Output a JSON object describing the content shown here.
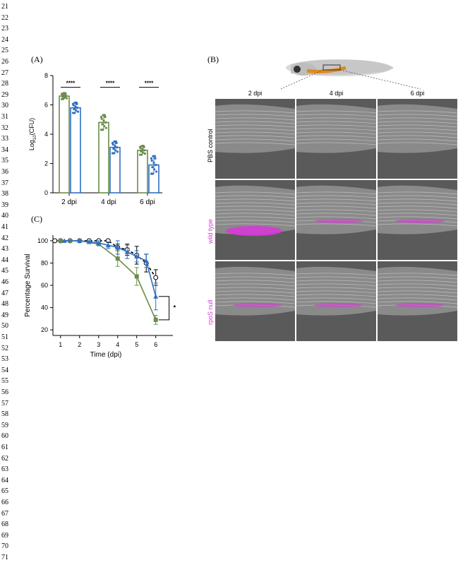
{
  "line_numbers": [
    "21",
    "22",
    "23",
    "24",
    "25",
    "26",
    "27",
    "28",
    "29",
    "30",
    "31",
    "32",
    "33",
    "34",
    "35",
    "36",
    "37",
    "38",
    "39",
    "40",
    "41",
    "42",
    "43",
    "44",
    "45",
    "46",
    "47",
    "48",
    "49",
    "50",
    "51",
    "52",
    "53",
    "54",
    "55",
    "56",
    "57",
    "58",
    "59",
    "60",
    "61",
    "62",
    "63",
    "64",
    "65",
    "66",
    "67",
    "68",
    "69",
    "70",
    "71"
  ],
  "panels": {
    "a": "(A)",
    "b": "(B)",
    "c": "(C)"
  },
  "colors": {
    "green": "#6b8c4a",
    "blue": "#2f6fc4",
    "magenta": "#d63ad6",
    "grey": "#5a5a5a"
  },
  "chart_data": [
    {
      "type": "bar",
      "ylabel": "Log10(CFU)",
      "categories": [
        "2 dpi",
        "4 dpi",
        "6 dpi"
      ],
      "ylim": [
        0,
        8
      ],
      "yticks": [
        "0",
        "2",
        "4",
        "6",
        "8"
      ],
      "series": [
        {
          "values": [
            6.6,
            4.8,
            2.9
          ],
          "errors": [
            0.2,
            0.5,
            0.3
          ]
        },
        {
          "values": [
            5.8,
            3.1,
            1.9
          ],
          "errors": [
            0.35,
            0.4,
            0.6
          ]
        }
      ],
      "significance": [
        "****",
        "****",
        "****"
      ]
    },
    {
      "type": "line",
      "xlabel": "Time (dpi)",
      "ylabel": "Percentage Survival",
      "xticks": [
        "1",
        "2",
        "3",
        "4",
        "5",
        "6"
      ],
      "yticks": [
        "20",
        "40",
        "60",
        "80",
        "100"
      ],
      "xlim": [
        0.6,
        6.9
      ],
      "ylim": [
        15,
        105
      ],
      "significance": "*",
      "series": [
        {
          "marker": "circle",
          "style": "dashed",
          "x": [
            0.7,
            1,
            1.5,
            2,
            2.5,
            3,
            3.5,
            4,
            4.5,
            5,
            5.5,
            6
          ],
          "y": [
            100,
            100,
            100,
            100,
            100,
            100,
            100,
            94,
            92,
            87,
            80,
            67
          ],
          "err": [
            0,
            0,
            0,
            0,
            0,
            0,
            0,
            3,
            5,
            8,
            8,
            7
          ]
        },
        {
          "marker": "square",
          "style": "solid",
          "x": [
            1,
            1.5,
            2,
            3,
            4,
            5,
            6
          ],
          "y": [
            100,
            100,
            100,
            97,
            84,
            68,
            29
          ],
          "err": [
            0,
            0,
            0,
            1,
            7,
            8,
            4
          ]
        },
        {
          "marker": "triangle",
          "style": "solid",
          "x": [
            1.2,
            2,
            2.5,
            3,
            3.5,
            4,
            4.5,
            5,
            5.5,
            6
          ],
          "y": [
            100,
            100,
            99,
            98,
            96,
            94,
            90,
            86,
            82,
            50
          ],
          "err": [
            0,
            0,
            1,
            2,
            3,
            6,
            6,
            5,
            6,
            12
          ]
        }
      ]
    }
  ],
  "panel_b": {
    "columns": [
      "2 dpi",
      "4 dpi",
      "6 dpi"
    ],
    "rows": [
      "PBS control",
      "wild type",
      "rpoS null"
    ]
  }
}
